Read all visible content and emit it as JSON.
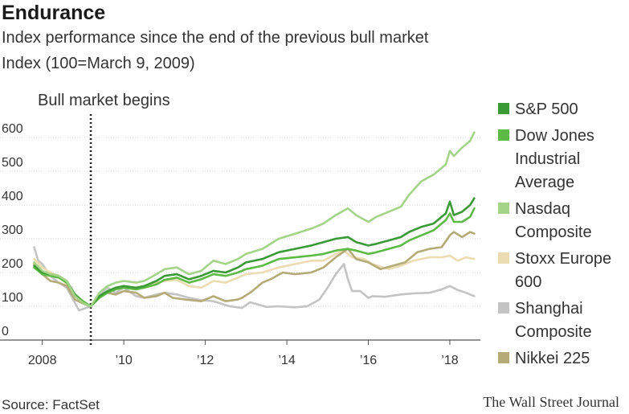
{
  "title": "Endurance",
  "subtitle": "Index performance since the end of the previous bull market",
  "subtitle2": "Index (100=March 9, 2009)",
  "source": "Source: FactSet",
  "credit": "The Wall Street Journal",
  "chart_data": {
    "type": "line",
    "title": "Endurance",
    "ylabel": "Index (100=March 9, 2009)",
    "xlabel": "",
    "ylim": [
      0,
      650
    ],
    "xlim": [
      2007.75,
      2018.75
    ],
    "y_ticks": [
      {
        "value": 0,
        "label": "0"
      },
      {
        "value": 100,
        "label": "100"
      },
      {
        "value": 200,
        "label": "200"
      },
      {
        "value": 300,
        "label": "300"
      },
      {
        "value": 400,
        "label": "400"
      },
      {
        "value": 500,
        "label": "500"
      },
      {
        "value": 600,
        "label": "600"
      }
    ],
    "x_ticks": [
      {
        "value": 2008,
        "label": "2008"
      },
      {
        "value": 2010,
        "label": "’10"
      },
      {
        "value": 2012,
        "label": "’12"
      },
      {
        "value": 2014,
        "label": "’14"
      },
      {
        "value": 2016,
        "label": "’16"
      },
      {
        "value": 2018,
        "label": "’18"
      }
    ],
    "annotation": {
      "x": 2009.19,
      "label": "Bull market begins"
    },
    "series": [
      {
        "name": "Shanghai Composite",
        "color": "#c4c4c4",
        "x": [
          2007.8,
          2007.9,
          2008.0,
          2008.2,
          2008.4,
          2008.6,
          2008.8,
          2008.9,
          2009.0,
          2009.19,
          2009.4,
          2009.6,
          2009.8,
          2010.0,
          2010.3,
          2010.5,
          2010.8,
          2011.0,
          2011.3,
          2011.6,
          2011.9,
          2012.2,
          2012.6,
          2012.9,
          2013.1,
          2013.5,
          2013.8,
          2014.2,
          2014.5,
          2014.8,
          2015.0,
          2015.2,
          2015.4,
          2015.5,
          2015.6,
          2015.8,
          2016.0,
          2016.1,
          2016.4,
          2016.8,
          2017.1,
          2017.5,
          2017.8,
          2018.0,
          2018.2,
          2018.4,
          2018.6
        ],
        "values": [
          275,
          235,
          225,
          190,
          170,
          155,
          110,
          88,
          92,
          100,
          135,
          155,
          140,
          155,
          130,
          125,
          135,
          140,
          135,
          125,
          118,
          115,
          100,
          95,
          112,
          98,
          100,
          97,
          100,
          120,
          155,
          195,
          225,
          180,
          145,
          145,
          125,
          130,
          128,
          135,
          138,
          140,
          150,
          160,
          148,
          140,
          130
        ]
      },
      {
        "name": "Stoxx Europe 600",
        "color": "#ebdcb2",
        "x": [
          2007.8,
          2008.0,
          2008.2,
          2008.4,
          2008.6,
          2008.8,
          2009.0,
          2009.19,
          2009.4,
          2009.6,
          2009.8,
          2010.0,
          2010.3,
          2010.5,
          2010.8,
          2011.0,
          2011.3,
          2011.6,
          2011.9,
          2012.2,
          2012.5,
          2012.8,
          2013.0,
          2013.4,
          2013.8,
          2014.2,
          2014.6,
          2014.9,
          2015.2,
          2015.4,
          2015.6,
          2015.9,
          2016.1,
          2016.5,
          2016.8,
          2017.1,
          2017.5,
          2017.8,
          2018.0,
          2018.2,
          2018.4,
          2018.6
        ],
        "values": [
          240,
          215,
          200,
          190,
          165,
          135,
          112,
          100,
          125,
          145,
          155,
          160,
          150,
          155,
          170,
          175,
          178,
          160,
          155,
          175,
          170,
          185,
          195,
          200,
          215,
          225,
          235,
          235,
          255,
          265,
          245,
          240,
          225,
          210,
          220,
          235,
          245,
          245,
          250,
          235,
          245,
          240
        ]
      },
      {
        "name": "Nikkei 225",
        "color": "#b5ab78",
        "x": [
          2007.8,
          2008.0,
          2008.2,
          2008.4,
          2008.6,
          2008.8,
          2009.0,
          2009.19,
          2009.4,
          2009.6,
          2009.8,
          2010.0,
          2010.3,
          2010.5,
          2010.8,
          2011.0,
          2011.2,
          2011.5,
          2011.9,
          2012.2,
          2012.5,
          2012.8,
          2012.9,
          2013.1,
          2013.4,
          2013.6,
          2013.9,
          2014.2,
          2014.6,
          2014.9,
          2015.2,
          2015.5,
          2015.7,
          2016.0,
          2016.3,
          2016.6,
          2016.9,
          2017.2,
          2017.5,
          2017.8,
          2018.0,
          2018.1,
          2018.3,
          2018.5,
          2018.6
        ],
        "values": [
          225,
          195,
          175,
          170,
          160,
          120,
          108,
          100,
          130,
          140,
          135,
          145,
          140,
          125,
          130,
          140,
          125,
          120,
          115,
          130,
          115,
          120,
          125,
          140,
          170,
          180,
          200,
          195,
          200,
          215,
          245,
          270,
          240,
          230,
          210,
          220,
          230,
          260,
          270,
          275,
          310,
          320,
          305,
          320,
          315
        ]
      },
      {
        "name": "Dow Jones Industrial Average",
        "color": "#5cba45",
        "x": [
          2007.8,
          2008.0,
          2008.2,
          2008.4,
          2008.6,
          2008.8,
          2009.0,
          2009.19,
          2009.4,
          2009.6,
          2009.8,
          2010.0,
          2010.3,
          2010.5,
          2010.8,
          2011.0,
          2011.3,
          2011.6,
          2011.9,
          2012.2,
          2012.5,
          2012.8,
          2013.0,
          2013.4,
          2013.8,
          2014.2,
          2014.6,
          2014.9,
          2015.2,
          2015.5,
          2015.7,
          2016.0,
          2016.2,
          2016.5,
          2016.8,
          2017.0,
          2017.3,
          2017.6,
          2017.9,
          2018.0,
          2018.1,
          2018.3,
          2018.5,
          2018.6
        ],
        "values": [
          215,
          195,
          190,
          185,
          170,
          135,
          115,
          100,
          125,
          140,
          150,
          155,
          150,
          155,
          165,
          178,
          185,
          170,
          180,
          195,
          190,
          200,
          210,
          220,
          240,
          245,
          250,
          255,
          265,
          270,
          265,
          255,
          260,
          270,
          280,
          295,
          310,
          325,
          355,
          375,
          350,
          350,
          365,
          390
        ]
      },
      {
        "name": "S&P 500",
        "color": "#3a9a35",
        "x": [
          2007.8,
          2008.0,
          2008.2,
          2008.4,
          2008.6,
          2008.8,
          2009.0,
          2009.19,
          2009.4,
          2009.6,
          2009.8,
          2010.0,
          2010.3,
          2010.5,
          2010.8,
          2011.0,
          2011.3,
          2011.6,
          2011.9,
          2012.2,
          2012.5,
          2012.8,
          2013.0,
          2013.4,
          2013.8,
          2014.2,
          2014.6,
          2014.9,
          2015.2,
          2015.5,
          2015.7,
          2016.0,
          2016.2,
          2016.5,
          2016.8,
          2017.0,
          2017.3,
          2017.6,
          2017.9,
          2018.0,
          2018.1,
          2018.3,
          2018.5,
          2018.6
        ],
        "values": [
          220,
          200,
          195,
          190,
          175,
          135,
          110,
          100,
          130,
          145,
          155,
          160,
          155,
          160,
          175,
          190,
          195,
          180,
          190,
          205,
          200,
          215,
          230,
          240,
          260,
          270,
          280,
          290,
          300,
          305,
          290,
          280,
          285,
          295,
          305,
          320,
          335,
          345,
          375,
          410,
          370,
          380,
          400,
          420
        ]
      },
      {
        "name": "Nasdaq Composite",
        "color": "#a3d488",
        "x": [
          2007.8,
          2008.0,
          2008.2,
          2008.4,
          2008.6,
          2008.8,
          2009.0,
          2009.19,
          2009.4,
          2009.6,
          2009.8,
          2010.0,
          2010.3,
          2010.5,
          2010.8,
          2011.0,
          2011.3,
          2011.6,
          2011.9,
          2012.2,
          2012.5,
          2012.8,
          2013.0,
          2013.4,
          2013.8,
          2014.2,
          2014.6,
          2014.9,
          2015.2,
          2015.5,
          2015.7,
          2016.0,
          2016.2,
          2016.5,
          2016.8,
          2017.0,
          2017.3,
          2017.6,
          2017.9,
          2018.0,
          2018.1,
          2018.3,
          2018.5,
          2018.6
        ],
        "values": [
          230,
          205,
          195,
          190,
          175,
          130,
          110,
          100,
          140,
          160,
          170,
          175,
          170,
          175,
          195,
          210,
          215,
          195,
          205,
          235,
          225,
          240,
          255,
          270,
          300,
          315,
          330,
          345,
          370,
          390,
          370,
          350,
          365,
          380,
          395,
          430,
          470,
          490,
          520,
          560,
          545,
          570,
          590,
          615
        ]
      }
    ]
  },
  "legend": {
    "items": [
      {
        "label": "S&P 500",
        "color": "#3a9a35"
      },
      {
        "label": "Dow Jones Industrial Average",
        "color": "#5cba45"
      },
      {
        "label": "Nasdaq Composite",
        "color": "#a3d488"
      },
      {
        "label": "Stoxx Europe 600",
        "color": "#ebdcb2"
      },
      {
        "label": "Shanghai Composite",
        "color": "#c4c4c4"
      },
      {
        "label": "Nikkei 225",
        "color": "#b5ab78"
      }
    ]
  }
}
